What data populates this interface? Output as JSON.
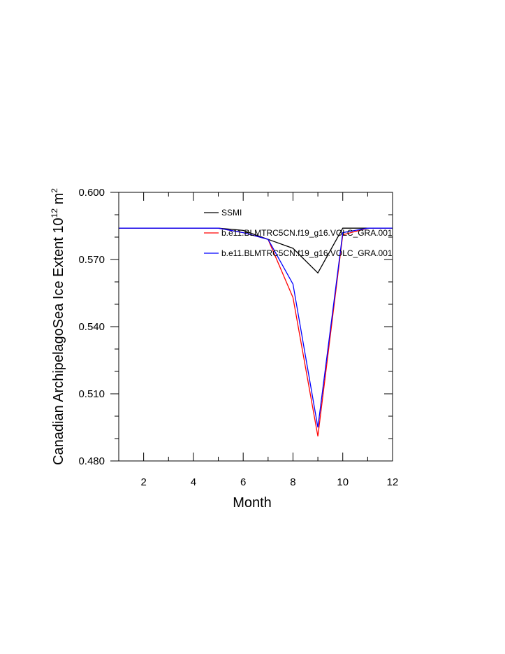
{
  "chart_data": {
    "type": "line",
    "title": "",
    "xlabel": "Month",
    "ylabel": "Canadian ArchipelagoSea Ice Extent 10",
    "ylabel_sup1": "12",
    "ylabel_mid": " m",
    "ylabel_sup2": "2",
    "xlim": [
      1,
      12
    ],
    "ylim": [
      0.48,
      0.6
    ],
    "x_ticks": [
      2,
      4,
      6,
      8,
      10,
      12
    ],
    "x_tick_labels": [
      "2",
      "4",
      "6",
      "8",
      "10",
      "12"
    ],
    "y_ticks": [
      0.48,
      0.51,
      0.54,
      0.57,
      0.6
    ],
    "y_tick_labels": [
      "0.480",
      "0.510",
      "0.540",
      "0.570",
      "0.600"
    ],
    "grid": false,
    "legend_position": "top-center",
    "series": [
      {
        "name": "SSMI",
        "color": "#000000",
        "x": [
          1,
          2,
          3,
          4,
          5,
          6,
          7,
          8,
          9,
          10,
          11,
          12
        ],
        "values": [
          0.584,
          0.584,
          0.584,
          0.584,
          0.584,
          0.583,
          0.579,
          0.575,
          0.564,
          0.584,
          0.584,
          0.584
        ]
      },
      {
        "name": "b.e11.BLMTRC5CN.f19_g16.VOLC_GRA.001",
        "color": "#ff0000",
        "x": [
          1,
          2,
          3,
          4,
          5,
          6,
          7,
          8,
          9,
          10,
          11,
          12
        ],
        "values": [
          0.584,
          0.584,
          0.584,
          0.584,
          0.584,
          0.582,
          0.579,
          0.553,
          0.491,
          0.581,
          0.584,
          0.584
        ]
      },
      {
        "name": "b.e11.BLMTRC5CN.f19_g16.VOLC_GRA.001",
        "color": "#0000ff",
        "x": [
          1,
          2,
          3,
          4,
          5,
          6,
          7,
          8,
          9,
          10,
          11,
          12
        ],
        "values": [
          0.584,
          0.584,
          0.584,
          0.584,
          0.584,
          0.582,
          0.579,
          0.559,
          0.495,
          0.582,
          0.584,
          0.584
        ]
      }
    ]
  }
}
